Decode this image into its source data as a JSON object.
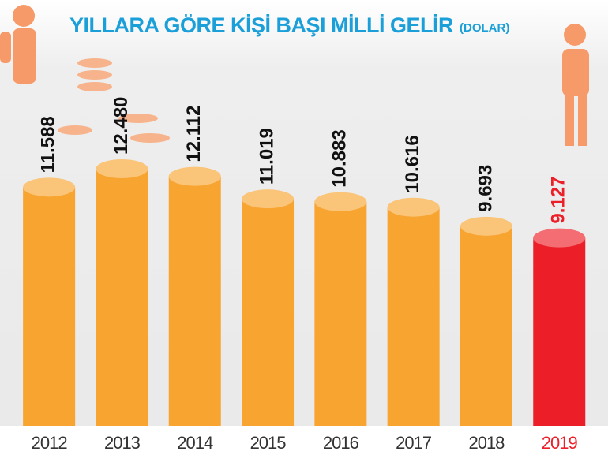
{
  "chart_data": {
    "type": "bar",
    "title": "YILLARA GÖRE KİŞİ BAŞI MİLLİ GELİR",
    "subtitle": "(DOLAR)",
    "categories": [
      "2012",
      "2013",
      "2014",
      "2015",
      "2016",
      "2017",
      "2018",
      "2019"
    ],
    "values": [
      11588,
      12480,
      12112,
      11019,
      10883,
      10616,
      9693,
      9127
    ],
    "value_labels": [
      "11.588",
      "12.480",
      "12.112",
      "11.019",
      "10.883",
      "10.616",
      "9.693",
      "9.127"
    ],
    "colors": [
      "#f8a431",
      "#f8a431",
      "#f8a431",
      "#f8a431",
      "#f8a431",
      "#f8a431",
      "#f8a431",
      "#ec1f28"
    ]
  }
}
